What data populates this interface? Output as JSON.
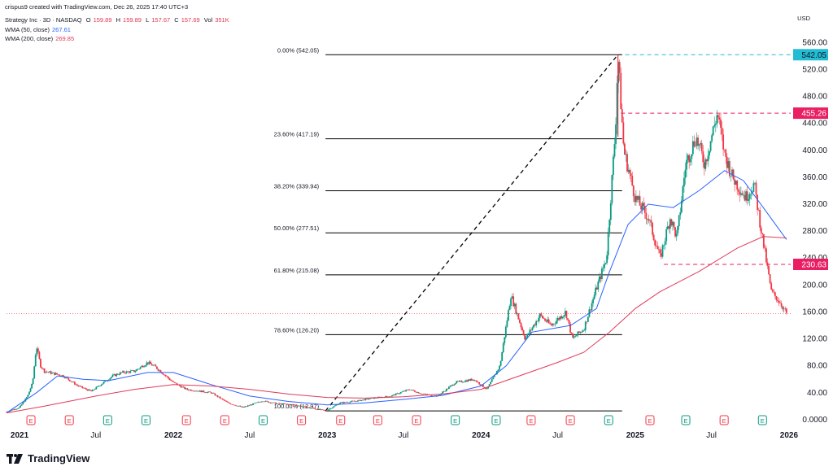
{
  "header": {
    "published": "crispus9 created with TradingView.com, Dec 26, 2025 17:40 UTC+3",
    "symbol": "Strategy Inc · 3D · NASDAQ",
    "o_label": "O",
    "o_value": "159.89",
    "h_label": "H",
    "h_value": "159.89",
    "l_label": "L",
    "l_value": "157.67",
    "c_label": "C",
    "c_value": "157.69",
    "vol_label": "Vol",
    "vol_value": "351K",
    "wma50_label": "WMA (50, close)",
    "wma50_value": "267.61",
    "wma200_label": "WMA (200, close)",
    "wma200_value": "269.85"
  },
  "currency": "USD",
  "brand": "TradingView",
  "colors": {
    "up": "#089981",
    "down": "#f23645",
    "wma50": "#2962ff",
    "wma200": "#e03a5a",
    "fib_line": "#000000",
    "marker_542": "#22bcd4",
    "marker_455": "#e91e63",
    "marker_230": "#e91e63"
  },
  "chart_data": {
    "type": "candlestick",
    "title": "Strategy Inc · 3D · NASDAQ",
    "ylabel": "USD",
    "yscale": "linear",
    "ylim": [
      -5,
      575
    ],
    "y_ticks": [
      "0.0000",
      "40.00",
      "80.00",
      "120.00",
      "160.00",
      "200.00",
      "240.00",
      "280.00",
      "320.00",
      "360.00",
      "400.00",
      "440.00",
      "480.00",
      "520.00",
      "560.00"
    ],
    "x_ticks": [
      "2021",
      "Jul",
      "2022",
      "Jul",
      "2023",
      "Jul",
      "2024",
      "Jul",
      "2025",
      "Jul",
      "2026"
    ],
    "grid": false,
    "price_path": [
      [
        "2020-12-01",
        12
      ],
      [
        "2021-01-01",
        18
      ],
      [
        "2021-01-20",
        35
      ],
      [
        "2021-02-01",
        55
      ],
      [
        "2021-02-10",
        110
      ],
      [
        "2021-02-20",
        80
      ],
      [
        "2021-03-01",
        72
      ],
      [
        "2021-04-15",
        65
      ],
      [
        "2021-05-20",
        50
      ],
      [
        "2021-06-20",
        42
      ],
      [
        "2021-08-10",
        65
      ],
      [
        "2021-09-01",
        70
      ],
      [
        "2021-10-01",
        72
      ],
      [
        "2021-11-01",
        85
      ],
      [
        "2021-11-20",
        78
      ],
      [
        "2022-01-01",
        55
      ],
      [
        "2022-02-01",
        45
      ],
      [
        "2022-04-01",
        40
      ],
      [
        "2022-05-10",
        25
      ],
      [
        "2022-06-15",
        18
      ],
      [
        "2022-08-01",
        28
      ],
      [
        "2022-09-01",
        24
      ],
      [
        "2022-10-15",
        22
      ],
      [
        "2022-12-28",
        13
      ],
      [
        "2023-02-01",
        25
      ],
      [
        "2023-03-15",
        28
      ],
      [
        "2023-04-20",
        32
      ],
      [
        "2023-06-01",
        35
      ],
      [
        "2023-07-15",
        45
      ],
      [
        "2023-08-15",
        38
      ],
      [
        "2023-09-20",
        35
      ],
      [
        "2023-11-01",
        55
      ],
      [
        "2023-12-15",
        60
      ],
      [
        "2024-01-15",
        45
      ],
      [
        "2024-02-15",
        80
      ],
      [
        "2024-03-12",
        185
      ],
      [
        "2024-04-15",
        120
      ],
      [
        "2024-05-20",
        155
      ],
      [
        "2024-06-15",
        140
      ],
      [
        "2024-07-20",
        160
      ],
      [
        "2024-08-05",
        120
      ],
      [
        "2024-09-01",
        135
      ],
      [
        "2024-10-01",
        195
      ],
      [
        "2024-10-25",
        240
      ],
      [
        "2024-11-15",
        430
      ],
      [
        "2024-11-21",
        542
      ],
      [
        "2024-12-05",
        400
      ],
      [
        "2025-01-01",
        330
      ],
      [
        "2025-02-01",
        300
      ],
      [
        "2025-03-01",
        240
      ],
      [
        "2025-03-25",
        300
      ],
      [
        "2025-04-10",
        270
      ],
      [
        "2025-05-01",
        380
      ],
      [
        "2025-05-25",
        420
      ],
      [
        "2025-06-15",
        380
      ],
      [
        "2025-07-15",
        455
      ],
      [
        "2025-08-01",
        395
      ],
      [
        "2025-08-20",
        360
      ],
      [
        "2025-09-20",
        330
      ],
      [
        "2025-10-10",
        350
      ],
      [
        "2025-10-30",
        270
      ],
      [
        "2025-11-20",
        190
      ],
      [
        "2025-12-10",
        175
      ],
      [
        "2025-12-26",
        158
      ]
    ],
    "series": [
      {
        "name": "WMA (50, close)",
        "last_value": 267.61,
        "points": [
          [
            "2020-12-01",
            10
          ],
          [
            "2021-02-10",
            40
          ],
          [
            "2021-04-01",
            65
          ],
          [
            "2021-06-01",
            60
          ],
          [
            "2021-08-01",
            58
          ],
          [
            "2021-11-01",
            70
          ],
          [
            "2022-01-01",
            70
          ],
          [
            "2022-04-01",
            52
          ],
          [
            "2022-07-01",
            35
          ],
          [
            "2022-10-01",
            27
          ],
          [
            "2023-01-01",
            22
          ],
          [
            "2023-04-01",
            25
          ],
          [
            "2023-07-01",
            30
          ],
          [
            "2023-10-01",
            36
          ],
          [
            "2024-01-01",
            50
          ],
          [
            "2024-03-01",
            80
          ],
          [
            "2024-05-01",
            130
          ],
          [
            "2024-08-01",
            140
          ],
          [
            "2024-10-01",
            165
          ],
          [
            "2024-11-01",
            220
          ],
          [
            "2024-12-15",
            290
          ],
          [
            "2025-02-01",
            320
          ],
          [
            "2025-04-01",
            315
          ],
          [
            "2025-06-01",
            340
          ],
          [
            "2025-08-01",
            370
          ],
          [
            "2025-09-15",
            355
          ],
          [
            "2025-11-01",
            315
          ],
          [
            "2025-12-26",
            267.61
          ]
        ]
      },
      {
        "name": "WMA (200, close)",
        "last_value": 269.85,
        "points": [
          [
            "2020-12-01",
            10
          ],
          [
            "2021-03-01",
            20
          ],
          [
            "2021-07-01",
            35
          ],
          [
            "2021-10-01",
            45
          ],
          [
            "2022-01-01",
            52
          ],
          [
            "2022-04-01",
            50
          ],
          [
            "2022-07-01",
            45
          ],
          [
            "2022-10-01",
            38
          ],
          [
            "2023-01-01",
            33
          ],
          [
            "2023-04-01",
            32
          ],
          [
            "2023-07-01",
            34
          ],
          [
            "2023-10-01",
            38
          ],
          [
            "2024-01-01",
            45
          ],
          [
            "2024-04-01",
            65
          ],
          [
            "2024-07-01",
            85
          ],
          [
            "2024-09-01",
            100
          ],
          [
            "2024-11-01",
            130
          ],
          [
            "2025-01-01",
            165
          ],
          [
            "2025-03-01",
            190
          ],
          [
            "2025-06-01",
            220
          ],
          [
            "2025-09-01",
            255
          ],
          [
            "2025-11-01",
            272
          ],
          [
            "2025-12-26",
            269.85
          ]
        ]
      }
    ],
    "fibonacci": {
      "from": [
        "2022-12-28",
        12.97
      ],
      "to": [
        "2024-11-21",
        542.05
      ],
      "levels": [
        {
          "label": "0.00% (542.05)",
          "value": 542.05
        },
        {
          "label": "23.60% (417.19)",
          "value": 417.19
        },
        {
          "label": "38.20% (339.94)",
          "value": 339.94
        },
        {
          "label": "50.00% (277.51)",
          "value": 277.51
        },
        {
          "label": "61.80% (215.08)",
          "value": 215.08
        },
        {
          "label": "78.60% (126.20)",
          "value": 126.2
        },
        {
          "label": "100.00% (12.97)",
          "value": 12.97
        }
      ]
    },
    "horizontal_levels": [
      {
        "value": 542.05,
        "label": "542.05"
      },
      {
        "value": 455.26,
        "label": "455.26"
      },
      {
        "value": 230.63,
        "label": "230.63"
      }
    ],
    "last_price": 157.69,
    "earnings_marker_label": "E"
  }
}
